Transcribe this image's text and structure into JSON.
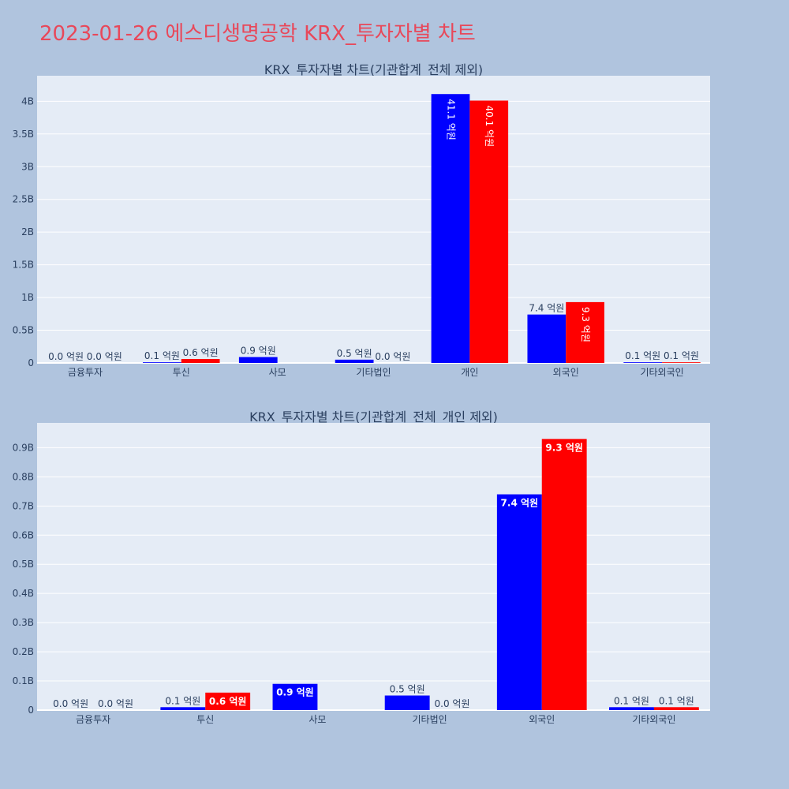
{
  "page": {
    "title": "2023-01-26 에스디생명공학 KRX_투자자별 차트"
  },
  "colors": {
    "title": "#e8485a",
    "series_a": "#0000ff",
    "series_b": "#ff0000",
    "plot_bg": "#e5ecf6",
    "page_bg": "#b0c4de"
  },
  "chart_data": [
    {
      "type": "bar",
      "title": "KRX_투자자별 차트(기관합계_전체 제외)",
      "categories": [
        "금융투자",
        "투신",
        "사모",
        "기타법인",
        "개인",
        "외국인",
        "기타외국인"
      ],
      "series": [
        {
          "color": "#0000ff",
          "values": [
            0.0,
            0.1,
            0.9,
            0.5,
            41.1,
            7.4,
            0.1
          ],
          "labels": [
            "0.0 억원",
            "0.1 억원",
            "0.9 억원",
            "0.5 억원",
            "41.1 억원",
            "7.4 억원",
            "0.1 억원"
          ]
        },
        {
          "color": "#ff0000",
          "values": [
            0.0,
            0.6,
            null,
            0.0,
            40.1,
            9.3,
            0.1
          ],
          "labels": [
            "0.0 억원",
            "0.6 억원",
            "",
            "0.0 억원",
            "40.1 억원",
            "9.3 억원",
            "0.1 억원"
          ]
        }
      ],
      "value_unit_note": "values in 억원 (1억 = 0.1B on axis)",
      "yticks": [
        "0",
        "0.5B",
        "1B",
        "1.5B",
        "2B",
        "2.5B",
        "3B",
        "3.5B",
        "4B"
      ],
      "ylim": [
        0,
        43.9
      ],
      "grid": true
    },
    {
      "type": "bar",
      "title": "KRX_투자자별 차트(기관합계_전체_개인 제외)",
      "categories": [
        "금융투자",
        "투신",
        "사모",
        "기타법인",
        "외국인",
        "기타외국인"
      ],
      "series": [
        {
          "color": "#0000ff",
          "values": [
            0.0,
            0.1,
            0.9,
            0.5,
            7.4,
            0.1
          ],
          "labels": [
            "0.0 억원",
            "0.1 억원",
            "0.9 억원",
            "0.5 억원",
            "7.4 억원",
            "0.1 억원"
          ]
        },
        {
          "color": "#ff0000",
          "values": [
            0.0,
            0.6,
            null,
            0.0,
            9.3,
            0.1
          ],
          "labels": [
            "0.0 억원",
            "0.6 억원",
            "",
            "0.0 억원",
            "9.3 억원",
            "0.1 억원"
          ]
        }
      ],
      "yticks": [
        "0",
        "0.1B",
        "0.2B",
        "0.3B",
        "0.4B",
        "0.5B",
        "0.6B",
        "0.7B",
        "0.8B",
        "0.9B"
      ],
      "ylim": [
        0,
        9.85
      ],
      "grid": true
    }
  ]
}
